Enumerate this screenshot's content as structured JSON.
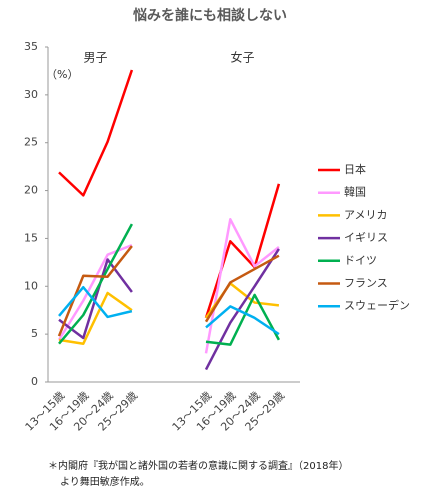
{
  "chart_data": {
    "type": "line",
    "title": "悩みを誰にも相談しない",
    "unit_label": "（%）",
    "ylim": [
      0,
      35
    ],
    "yticks": [
      0,
      5,
      10,
      15,
      20,
      25,
      30,
      35
    ],
    "categories": [
      "13～15歳",
      "16～19歳",
      "20～24歳",
      "25～29歳"
    ],
    "panels": [
      "男子",
      "女子"
    ],
    "series": [
      {
        "name": "日本",
        "color": "#ff0000",
        "values": [
          [
            21.9,
            19.5,
            25.1,
            32.6
          ],
          [
            6.7,
            14.7,
            12.0,
            20.7
          ]
        ]
      },
      {
        "name": "韓国",
        "color": "#ff99ff",
        "values": [
          [
            4.4,
            8.5,
            13.3,
            14.3
          ],
          [
            3.0,
            17.0,
            12.1,
            14.1
          ]
        ]
      },
      {
        "name": "アメリカ",
        "color": "#ffc000",
        "values": [
          [
            4.4,
            4.0,
            9.3,
            7.5
          ],
          [
            6.7,
            10.3,
            8.3,
            8.0
          ]
        ]
      },
      {
        "name": "イギリス",
        "color": "#7030a0",
        "values": [
          [
            6.5,
            4.6,
            12.8,
            9.4
          ],
          [
            1.3,
            6.2,
            10.0,
            13.9
          ]
        ]
      },
      {
        "name": "ドイツ",
        "color": "#00b050",
        "values": [
          [
            4.0,
            7.0,
            11.8,
            16.5
          ],
          [
            4.2,
            3.9,
            9.1,
            4.4
          ]
        ]
      },
      {
        "name": "フランス",
        "color": "#c55a11",
        "values": [
          [
            4.8,
            11.1,
            11.0,
            14.2
          ],
          [
            6.3,
            10.4,
            11.8,
            13.2
          ]
        ]
      },
      {
        "name": "スウェーデン",
        "color": "#00b0f0",
        "values": [
          [
            6.9,
            9.9,
            6.8,
            7.4
          ],
          [
            5.7,
            7.9,
            6.7,
            5.0
          ]
        ]
      }
    ],
    "footnote": [
      "＊内閣府『我が国と諸外国の若者の意識に関する調査』（2018年）",
      "より舞田敏彦作成。"
    ]
  }
}
